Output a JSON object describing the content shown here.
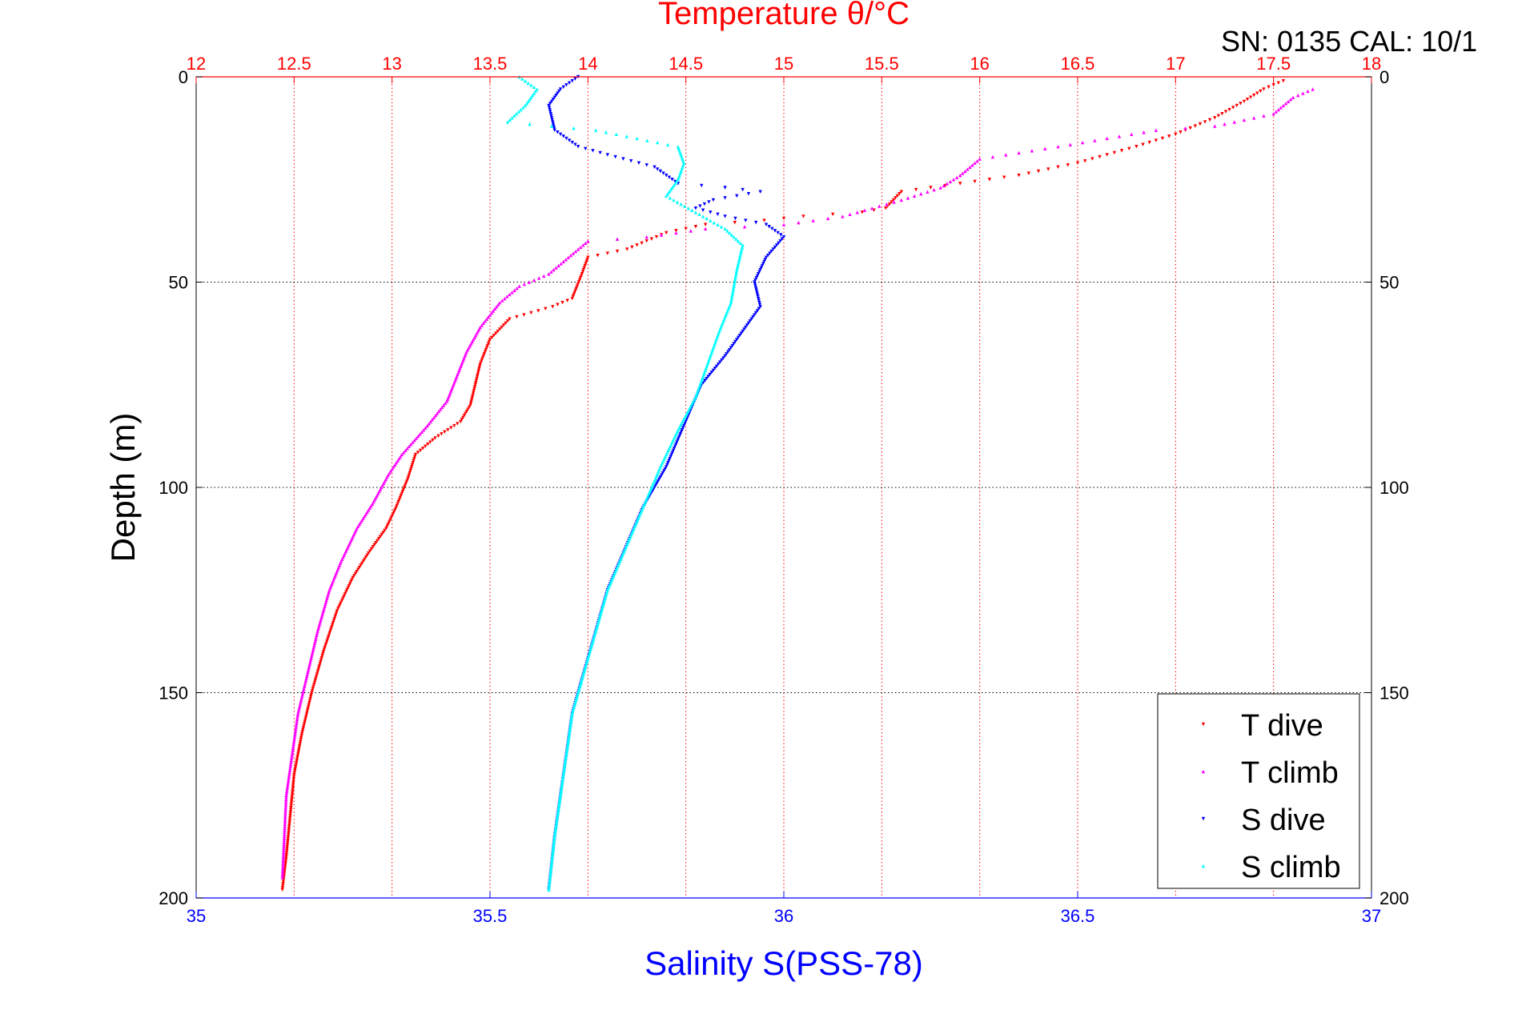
{
  "chart_data": {
    "type": "scatter",
    "title": "Temperature θ/°C",
    "annotation": "SN: 0135  CAL: 10/1",
    "xlabel_top": "Temperature θ/°C",
    "xlabel_bottom": "Salinity S(PSS-78)",
    "ylabel": "Depth (m)",
    "temperature_axis": {
      "range": [
        12,
        18
      ],
      "ticks": [
        "12",
        "12.5",
        "13",
        "13.5",
        "14",
        "14.5",
        "15",
        "15.5",
        "16",
        "16.5",
        "17",
        "17.5",
        "18"
      ],
      "color": "#ff0000"
    },
    "salinity_axis": {
      "range": [
        35,
        37
      ],
      "ticks": [
        "35",
        "35.5",
        "36",
        "36.5",
        "37"
      ],
      "color": "#0000ff"
    },
    "depth_axis": {
      "range": [
        0,
        200
      ],
      "reversed": true,
      "ticks": [
        "0",
        "50",
        "100",
        "150",
        "200"
      ]
    },
    "grid": true,
    "legend": {
      "placement": "bottom-right",
      "entries": [
        "T dive",
        "T climb",
        "S dive",
        "S climb"
      ]
    },
    "series": [
      {
        "name": "T dive",
        "axis": "temperature",
        "color": "#ff0000",
        "points": [
          [
            17.55,
            1
          ],
          [
            17.45,
            3
          ],
          [
            17.35,
            6
          ],
          [
            17.2,
            10
          ],
          [
            17.0,
            14
          ],
          [
            16.8,
            17
          ],
          [
            16.5,
            21
          ],
          [
            16.2,
            24
          ],
          [
            15.9,
            26
          ],
          [
            15.6,
            28
          ],
          [
            15.52,
            32
          ],
          [
            15.4,
            33
          ],
          [
            15.1,
            34
          ],
          [
            14.9,
            35
          ],
          [
            14.6,
            36
          ],
          [
            14.4,
            38
          ],
          [
            14.2,
            42
          ],
          [
            14.0,
            44
          ],
          [
            13.97,
            48
          ],
          [
            13.92,
            54
          ],
          [
            13.82,
            56
          ],
          [
            13.6,
            59
          ],
          [
            13.5,
            64
          ],
          [
            13.45,
            70
          ],
          [
            13.42,
            76
          ],
          [
            13.4,
            80
          ],
          [
            13.35,
            84
          ],
          [
            13.22,
            88
          ],
          [
            13.12,
            92
          ],
          [
            13.08,
            98
          ],
          [
            13.02,
            105
          ],
          [
            12.97,
            110
          ],
          [
            12.88,
            116
          ],
          [
            12.8,
            122
          ],
          [
            12.72,
            130
          ],
          [
            12.65,
            140
          ],
          [
            12.59,
            150
          ],
          [
            12.54,
            160
          ],
          [
            12.5,
            170
          ],
          [
            12.48,
            180
          ],
          [
            12.46,
            190
          ],
          [
            12.44,
            198
          ]
        ]
      },
      {
        "name": "T climb",
        "axis": "temperature",
        "color": "#ff00ff",
        "points": [
          [
            17.7,
            3
          ],
          [
            17.6,
            5
          ],
          [
            17.5,
            9
          ],
          [
            17.2,
            12
          ],
          [
            16.9,
            13
          ],
          [
            16.4,
            17
          ],
          [
            16.0,
            20
          ],
          [
            15.9,
            24
          ],
          [
            15.8,
            27
          ],
          [
            15.6,
            30
          ],
          [
            15.3,
            34
          ],
          [
            15.0,
            36
          ],
          [
            14.6,
            37
          ],
          [
            14.3,
            39
          ],
          [
            14.0,
            40
          ],
          [
            13.9,
            44
          ],
          [
            13.8,
            48
          ],
          [
            13.65,
            51
          ],
          [
            13.55,
            55
          ],
          [
            13.45,
            61
          ],
          [
            13.38,
            67
          ],
          [
            13.33,
            73
          ],
          [
            13.28,
            79
          ],
          [
            13.18,
            85
          ],
          [
            13.05,
            92
          ],
          [
            12.98,
            97
          ],
          [
            12.9,
            104
          ],
          [
            12.82,
            110
          ],
          [
            12.74,
            118
          ],
          [
            12.68,
            125
          ],
          [
            12.62,
            135
          ],
          [
            12.57,
            145
          ],
          [
            12.52,
            155
          ],
          [
            12.49,
            165
          ],
          [
            12.46,
            175
          ],
          [
            12.45,
            185
          ],
          [
            12.44,
            195
          ]
        ]
      },
      {
        "name": "S dive",
        "axis": "salinity",
        "color": "#0000ff",
        "points": [
          [
            35.65,
            0
          ],
          [
            35.62,
            3
          ],
          [
            35.6,
            7
          ],
          [
            35.61,
            13
          ],
          [
            35.65,
            17
          ],
          [
            35.7,
            19
          ],
          [
            35.78,
            22
          ],
          [
            35.82,
            26
          ],
          [
            35.9,
            27
          ],
          [
            35.96,
            28
          ],
          [
            35.88,
            30
          ],
          [
            35.85,
            32
          ],
          [
            35.9,
            34
          ],
          [
            35.97,
            36
          ],
          [
            36.0,
            39
          ],
          [
            35.97,
            44
          ],
          [
            35.95,
            50
          ],
          [
            35.96,
            56
          ],
          [
            35.93,
            62
          ],
          [
            35.9,
            68
          ],
          [
            35.86,
            75
          ],
          [
            35.83,
            85
          ],
          [
            35.8,
            95
          ],
          [
            35.76,
            105
          ],
          [
            35.73,
            115
          ],
          [
            35.7,
            125
          ],
          [
            35.68,
            135
          ],
          [
            35.66,
            145
          ],
          [
            35.64,
            155
          ],
          [
            35.63,
            165
          ],
          [
            35.62,
            175
          ],
          [
            35.61,
            185
          ],
          [
            35.6,
            198
          ]
        ]
      },
      {
        "name": "S climb",
        "axis": "salinity",
        "color": "#00ffff",
        "points": [
          [
            35.55,
            0
          ],
          [
            35.58,
            3
          ],
          [
            35.56,
            7
          ],
          [
            35.53,
            11
          ],
          [
            35.68,
            13
          ],
          [
            35.75,
            15
          ],
          [
            35.82,
            17
          ],
          [
            35.83,
            21
          ],
          [
            35.82,
            25
          ],
          [
            35.8,
            29
          ],
          [
            35.85,
            33
          ],
          [
            35.9,
            37
          ],
          [
            35.93,
            41
          ],
          [
            35.92,
            47
          ],
          [
            35.91,
            55
          ],
          [
            35.89,
            62
          ],
          [
            35.87,
            70
          ],
          [
            35.85,
            78
          ],
          [
            35.82,
            86
          ],
          [
            35.79,
            95
          ],
          [
            35.76,
            105
          ],
          [
            35.73,
            115
          ],
          [
            35.7,
            125
          ],
          [
            35.68,
            135
          ],
          [
            35.66,
            145
          ],
          [
            35.64,
            155
          ],
          [
            35.63,
            165
          ],
          [
            35.62,
            175
          ],
          [
            35.61,
            185
          ],
          [
            35.6,
            198
          ]
        ]
      }
    ]
  }
}
